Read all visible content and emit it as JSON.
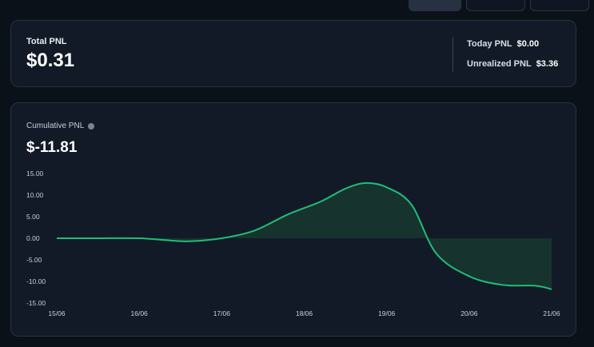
{
  "total": {
    "label": "Total PNL",
    "value": "$0.31"
  },
  "stats": {
    "today_label": "Today PNL",
    "today_value": "$0.00",
    "unrealized_label": "Unrealized PNL",
    "unrealized_value": "$3.36"
  },
  "cumulative": {
    "label": "Cumulative PNL",
    "value": "$-11.81"
  },
  "colors": {
    "line": "#1fbf75",
    "fill": "#17332e",
    "background": "#121a27"
  },
  "chart_data": {
    "type": "area",
    "title": "",
    "xlabel": "",
    "ylabel": "",
    "x_ticks": [
      "15/06",
      "16/06",
      "17/06",
      "18/06",
      "19/06",
      "20/06",
      "21/06"
    ],
    "y_ticks": [
      "15.00",
      "10.00",
      "5.00",
      "0.00",
      "-5.00",
      "-10.00",
      "-15.00"
    ],
    "ylim": [
      -15,
      15
    ],
    "grid": false,
    "series": [
      {
        "x": [
          0,
          0.5,
          1,
          1.3,
          1.6,
          2,
          2.4,
          2.8,
          3.2,
          3.5,
          3.75,
          4.0,
          4.3,
          4.6,
          5.0,
          5.4,
          5.8,
          6.0
        ],
        "values": [
          0,
          0,
          0,
          -0.4,
          -0.7,
          0,
          1.8,
          5.5,
          8.5,
          11.5,
          12.8,
          11.8,
          7.8,
          -3.5,
          -8.8,
          -10.8,
          -11.0,
          -11.81
        ]
      }
    ]
  }
}
